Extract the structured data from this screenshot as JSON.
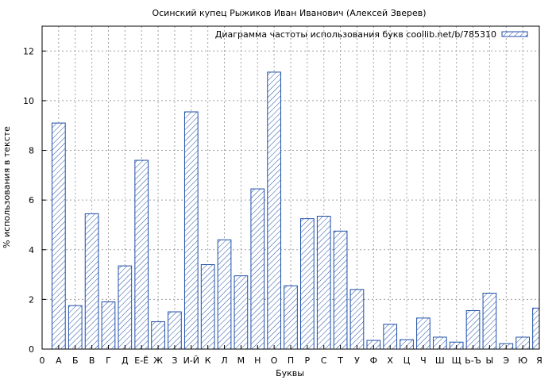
{
  "chart_data": {
    "type": "bar",
    "title": "Осинский купец Рыжиков Иван Иванович (Алексей Зверев)",
    "xlabel": "Буквы",
    "ylabel": "% использования в тексте",
    "legend": {
      "label": "Диаграмма частоты использования букв coollib.net/b/785310",
      "placement": "top-right"
    },
    "grid": true,
    "ylim": [
      0,
      13
    ],
    "yticks": [
      0,
      2,
      4,
      6,
      8,
      10,
      12
    ],
    "x_tick_labels": [
      "0",
      "А",
      "Б",
      "В",
      "Г",
      "Д",
      "Е-Ё",
      "Ж",
      "З",
      "И-Й",
      "К",
      "Л",
      "М",
      "Н",
      "О",
      "П",
      "Р",
      "С",
      "Т",
      "У",
      "Ф",
      "Х",
      "Ц",
      "Ч",
      "Ш",
      "Щ",
      "Ь-Ъ",
      "Ы",
      "Э",
      "Ю",
      "Я"
    ],
    "categories": [
      "А",
      "Б",
      "В",
      "Г",
      "Д",
      "Е-Ё",
      "Ж",
      "З",
      "И-Й",
      "К",
      "Л",
      "М",
      "Н",
      "О",
      "П",
      "Р",
      "С",
      "Т",
      "У",
      "Ф",
      "Х",
      "Ц",
      "Ч",
      "Ш",
      "Щ",
      "Ь-Ъ",
      "Ы",
      "Э",
      "Ю",
      "Я"
    ],
    "values": [
      9.1,
      1.75,
      5.45,
      1.9,
      3.35,
      7.6,
      1.1,
      1.5,
      9.55,
      3.4,
      4.4,
      2.95,
      6.45,
      11.15,
      2.55,
      5.25,
      5.35,
      4.75,
      2.4,
      0.35,
      1.0,
      0.38,
      1.25,
      0.48,
      0.28,
      1.55,
      2.25,
      0.22,
      0.48,
      1.65
    ],
    "colors": {
      "bar_stroke": "#1f4fa8",
      "hatch": "#1f4fa8",
      "grid": "#a0a0a0"
    }
  }
}
